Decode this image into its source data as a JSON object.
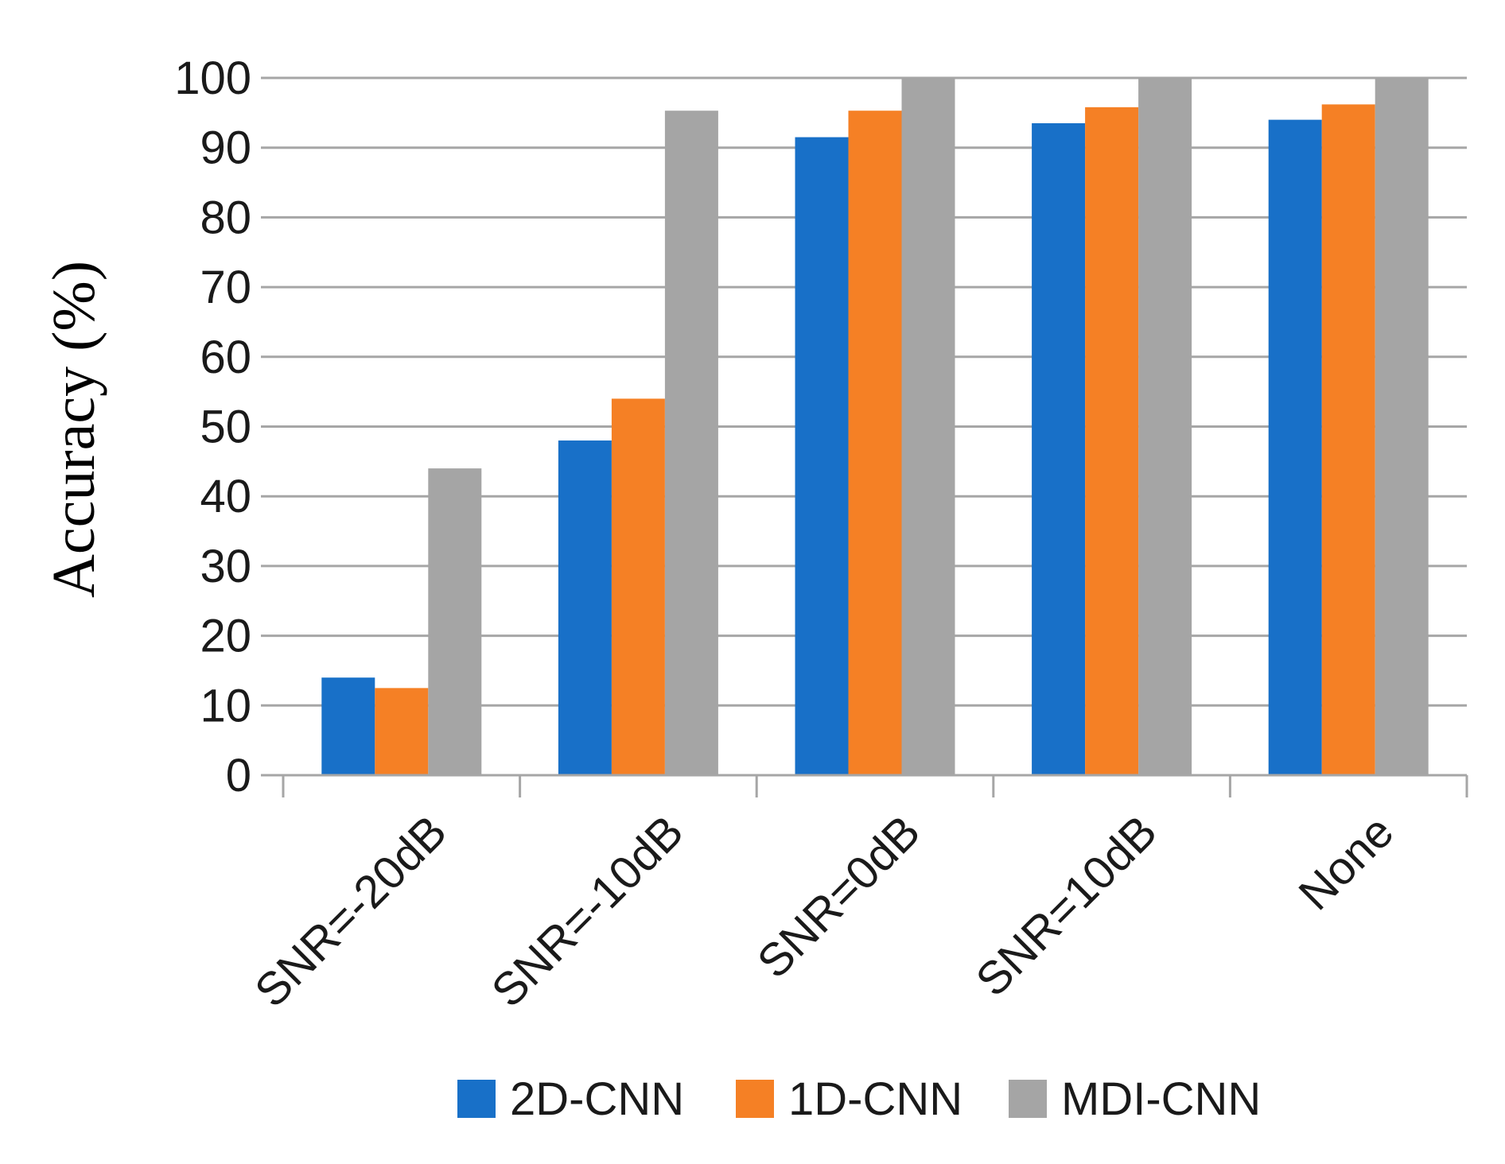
{
  "chart_data": {
    "type": "bar",
    "categories": [
      "SNR=-20dB",
      "SNR=-10dB",
      "SNR=0dB",
      "SNR=10dB",
      "None"
    ],
    "series": [
      {
        "name": "2D-CNN",
        "color": "#1870c8",
        "values": [
          14,
          48,
          91.5,
          93.5,
          94
        ]
      },
      {
        "name": "1D-CNN",
        "color": "#f58025",
        "values": [
          12.5,
          54,
          95.3,
          95.8,
          96.2
        ]
      },
      {
        "name": "MDI-CNN",
        "color": "#a5a5a5",
        "values": [
          44,
          95.3,
          100,
          100,
          100
        ]
      }
    ],
    "title": "",
    "xlabel": "",
    "ylabel": "Accuracy (%)",
    "ylim": [
      0,
      100
    ],
    "yticks": [
      "0",
      "10",
      "20",
      "30",
      "40",
      "50",
      "60",
      "70",
      "80",
      "90",
      "100"
    ],
    "grid": true,
    "legend_position": "bottom"
  }
}
